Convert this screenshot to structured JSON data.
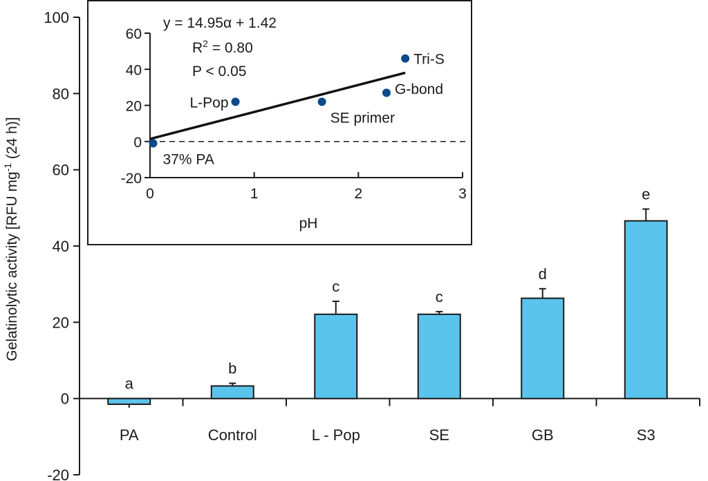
{
  "chart_data": [
    {
      "type": "bar",
      "title": "",
      "xlabel": "",
      "ylabel": "Gelatinolytic activity [RFU mg",
      "ylabel_superscript": "-1",
      "ylabel_suffix": " (24 h)]",
      "ylim": [
        -20,
        100
      ],
      "yticks": [
        100,
        80,
        60,
        40,
        20,
        0,
        -20
      ],
      "grid": false,
      "bar_color": "#5bc4ec",
      "categories": [
        "PA",
        "Control",
        "L - Pop",
        "SE",
        "GB",
        "S3"
      ],
      "values": [
        -1.5,
        3.3,
        22.1,
        22.1,
        26.3,
        46.6
      ],
      "error_plus": [
        0,
        0.7,
        3.4,
        0.7,
        2.5,
        3.1
      ],
      "significance_letters": [
        "a",
        "b",
        "c",
        "c",
        "d",
        "e"
      ]
    },
    {
      "type": "scatter",
      "title": "",
      "xlabel": "pH",
      "ylabel": "",
      "xlim": [
        0,
        3
      ],
      "ylim": [
        -20,
        60
      ],
      "xticks": [
        0,
        1,
        2,
        3
      ],
      "yticks": [
        60,
        40,
        20,
        0,
        -20
      ],
      "point_color": "#0d4a8a",
      "points": [
        {
          "label": "37% PA",
          "x": 0.03,
          "y": -1
        },
        {
          "label": "L-Pop",
          "x": 0.82,
          "y": 22
        },
        {
          "label": "SE primer",
          "x": 1.65,
          "y": 22
        },
        {
          "label": "G-bond",
          "x": 2.27,
          "y": 27
        },
        {
          "label": "Tri-S",
          "x": 2.45,
          "y": 46
        }
      ],
      "regression": {
        "slope": 14.95,
        "intercept": 1.42,
        "x_range": [
          0,
          2.45
        ]
      },
      "reference_line_y": 0,
      "annotations": {
        "equation": "y = 14.95α + 1.42",
        "r2_prefix": "R",
        "r2_sup": "2",
        "r2_suffix": " = 0.80",
        "p_value": "P < 0.05"
      }
    }
  ]
}
